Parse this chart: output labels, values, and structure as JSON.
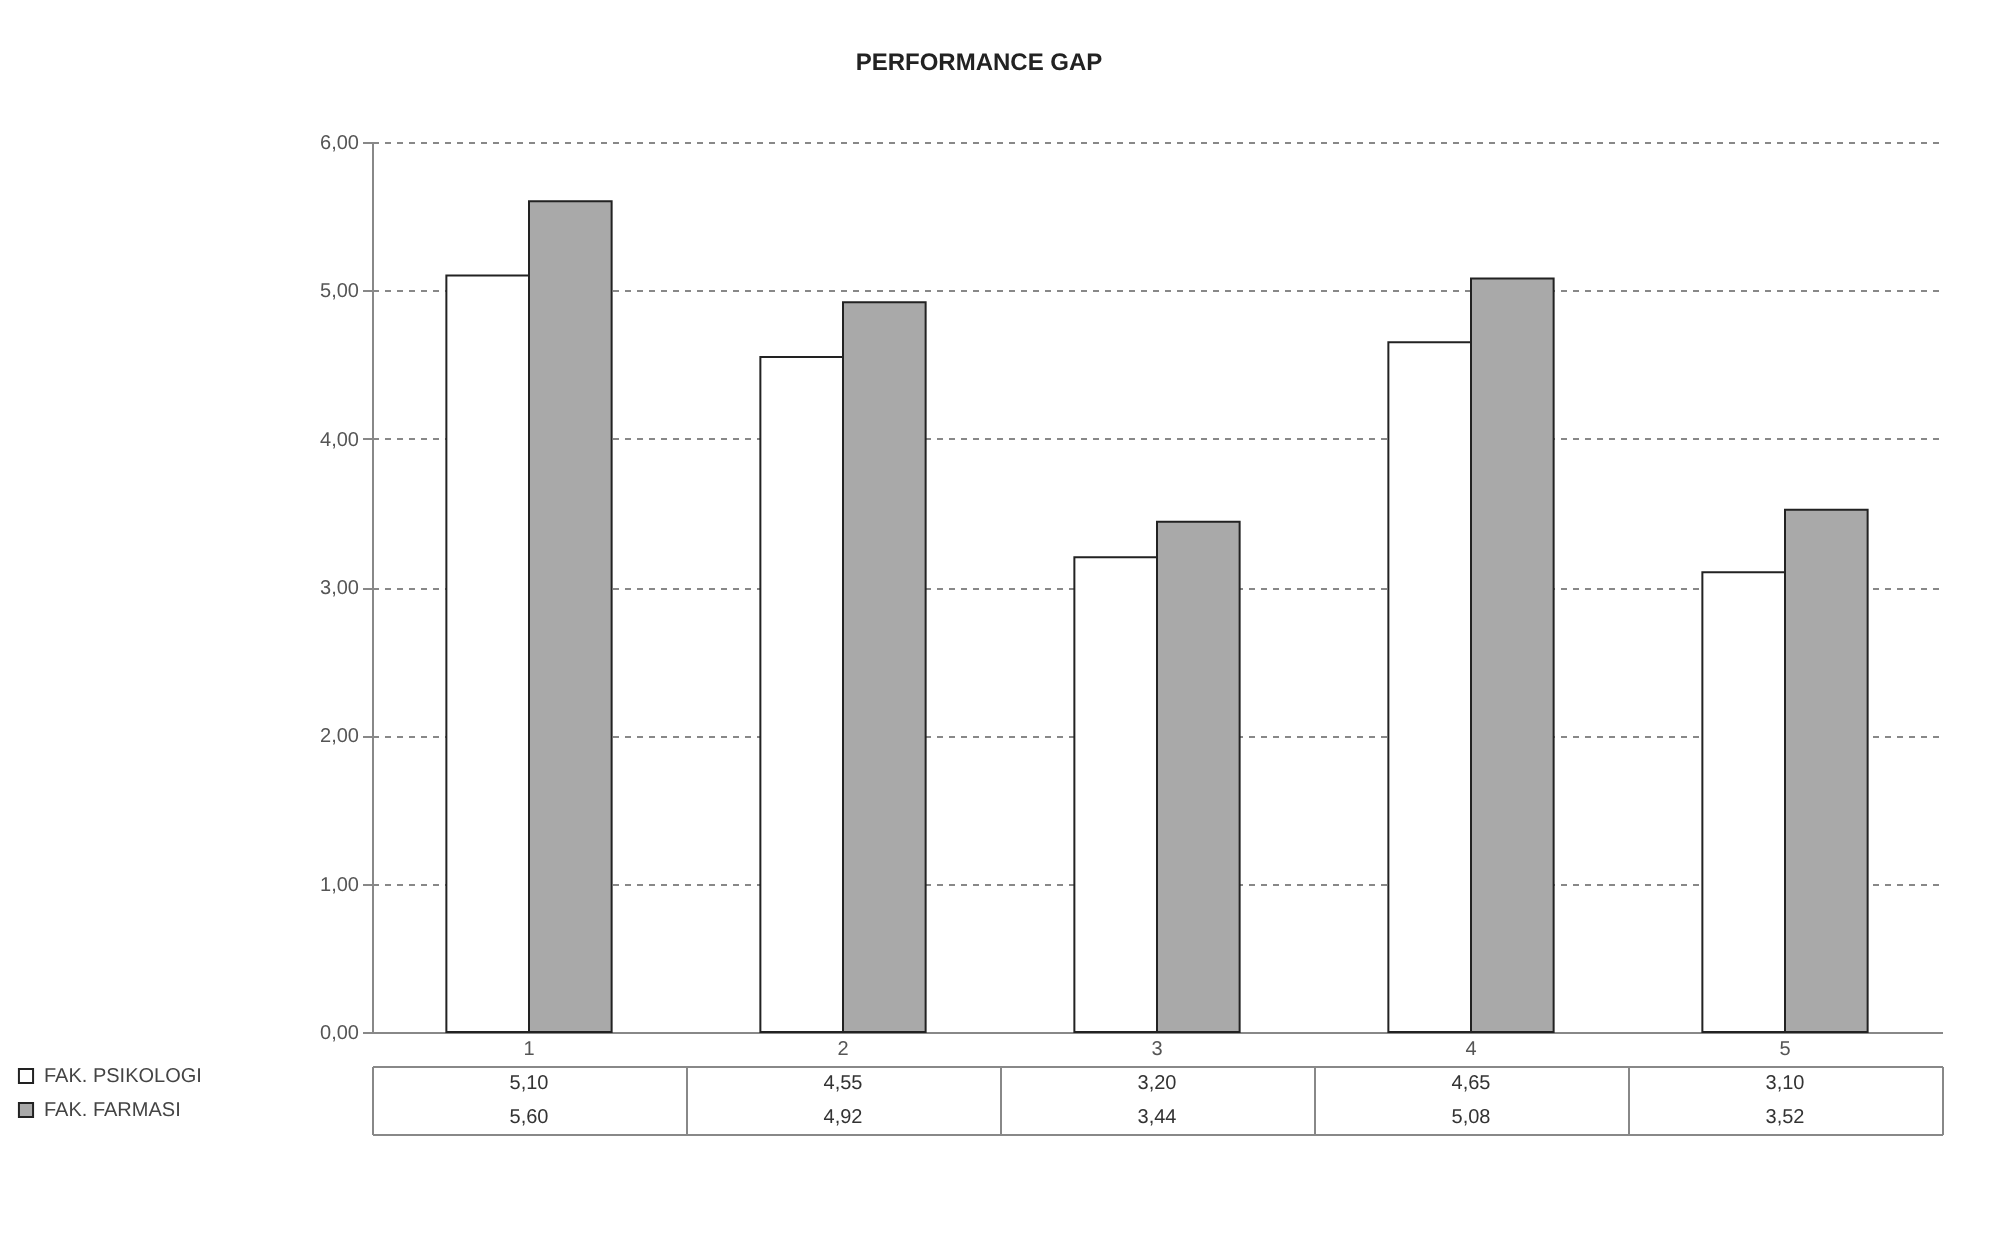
{
  "chart_data": {
    "type": "bar",
    "title": "PERFORMANCE GAP",
    "categories": [
      "1",
      "2",
      "3",
      "4",
      "5"
    ],
    "series": [
      {
        "name": "FAK. PSIKOLOGI",
        "color": "#ffffff",
        "values": [
          5.1,
          4.55,
          3.2,
          4.65,
          3.1
        ],
        "value_labels": [
          "5,10",
          "4,55",
          "3,20",
          "4,65",
          "3,10"
        ]
      },
      {
        "name": "FAK. FARMASI",
        "color": "#a9a9a9",
        "values": [
          5.6,
          4.92,
          3.44,
          5.08,
          3.52
        ],
        "value_labels": [
          "5,60",
          "4,92",
          "3,44",
          "5,08",
          "3,52"
        ]
      }
    ],
    "ylim": [
      0,
      6
    ],
    "yticks": [
      {
        "value": 0,
        "label": "0,00"
      },
      {
        "value": 1,
        "label": "1,00"
      },
      {
        "value": 2,
        "label": "2,00"
      },
      {
        "value": 3,
        "label": "3,00"
      },
      {
        "value": 4,
        "label": "4,00"
      },
      {
        "value": 5,
        "label": "5,00"
      },
      {
        "value": 6,
        "label": "6,00"
      }
    ],
    "grid": "y",
    "legend": "bottom left"
  }
}
